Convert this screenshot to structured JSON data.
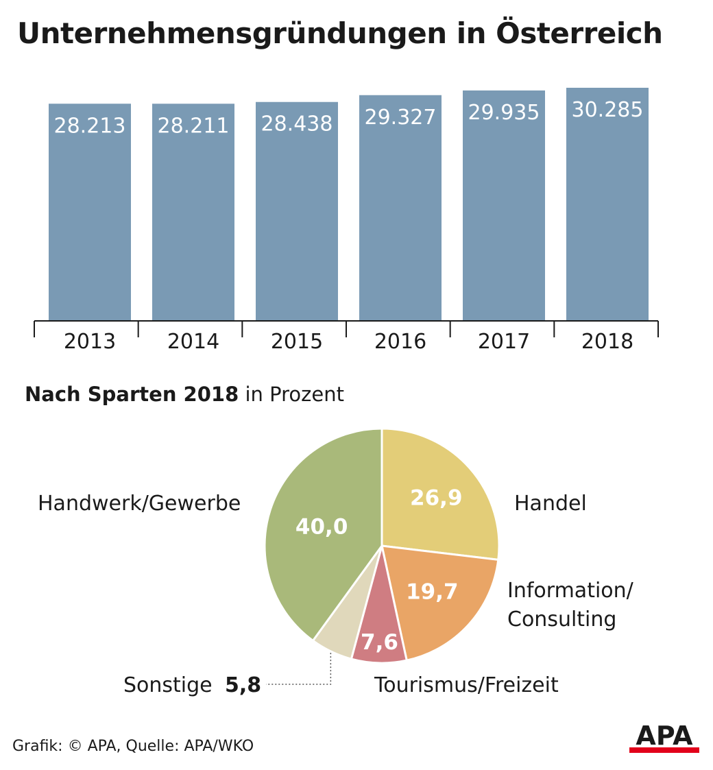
{
  "chart_data": [
    {
      "type": "bar",
      "title": "Unternehmensgründungen in Österreich",
      "categories": [
        "2013",
        "2014",
        "2015",
        "2016",
        "2017",
        "2018"
      ],
      "value_labels": [
        "28.213",
        "28.211",
        "28.438",
        "29.327",
        "29.935",
        "30.285"
      ],
      "values": [
        28213,
        28211,
        28438,
        29327,
        29935,
        30285
      ],
      "ylim": [
        0,
        30285
      ],
      "bar_color": "#7a9ab4",
      "grid": false
    },
    {
      "type": "pie",
      "subtitle_bold": "Nach Sparten 2018",
      "subtitle_rest": " in Prozent",
      "slices": [
        {
          "label": "Handel",
          "value": 26.9,
          "value_label": "26,9",
          "color": "#e3cd78"
        },
        {
          "label": "Information/\nConsulting",
          "value": 19.7,
          "value_label": "19,7",
          "color": "#e9a566"
        },
        {
          "label": "Tourismus/Freizeit",
          "value": 7.6,
          "value_label": "7,6",
          "color": "#cf7d82"
        },
        {
          "label": "Sonstige",
          "value": 5.8,
          "value_label": "5,8",
          "color": "#e0d8bb"
        },
        {
          "label": "Handwerk/Gewerbe",
          "value": 40.0,
          "value_label": "40,0",
          "color": "#a9b97a"
        }
      ]
    }
  ],
  "footer": {
    "credit": "Grafik: © APA, Quelle: APA/WKO"
  },
  "logo": {
    "text": "APA",
    "accent_color": "#e2001a"
  }
}
